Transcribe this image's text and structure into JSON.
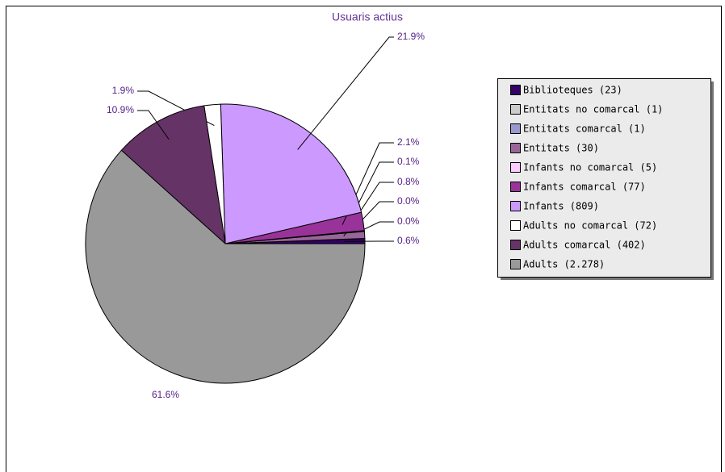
{
  "chart_data": {
    "type": "pie",
    "title": "Usuaris actius",
    "categories": [
      "Biblioteques (23)",
      "Entitats no comarcal (1)",
      "Entitats comarcal (1)",
      "Entitats (30)",
      "Infants no comarcal (5)",
      "Infants comarcal (77)",
      "Infants (809)",
      "Adults no comarcal (72)",
      "Adults comarcal (402)",
      "Adults (2.278)"
    ],
    "values": [
      0.6,
      0.0,
      0.0,
      0.8,
      0.1,
      2.1,
      21.9,
      1.9,
      10.9,
      61.6
    ],
    "value_labels": [
      "0.6%",
      "0.0%",
      "0.0%",
      "0.8%",
      "0.1%",
      "2.1%",
      "21.9%",
      "1.9%",
      "10.9%",
      "61.6%"
    ],
    "colors": [
      "#330066",
      "#cccccc",
      "#9999cc",
      "#996699",
      "#ffccff",
      "#993399",
      "#cc99ff",
      "#ffffff",
      "#663366",
      "#999999"
    ],
    "legend": "right"
  }
}
